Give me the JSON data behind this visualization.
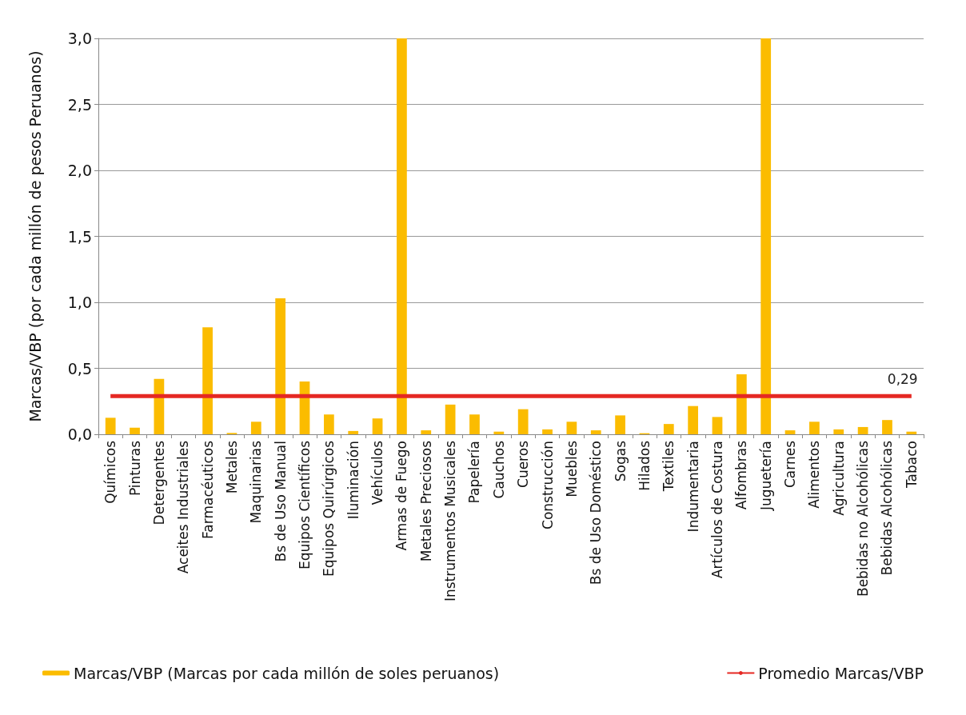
{
  "chart_data": {
    "type": "bar",
    "ylabel": "Marcas/VBP (por cada millón de pesos Peruanos)",
    "categories": [
      "Químicos",
      "Pinturas",
      "Detergentes",
      "Aceites Industriales",
      "Farmacéuticos",
      "Metales",
      "Maquinarias",
      "Bs de Uso Manual",
      "Equipos Científicos",
      "Equipos Quirúrgicos",
      "Iluminación",
      "Vehículos",
      "Armas de Fuego",
      "Metales Preciosos",
      "Instrumentos Musicales",
      "Papelería",
      "Cauchos",
      "Cueros",
      "Construcción",
      "Muebles",
      "Bs de Uso Doméstico",
      "Sogas",
      "Hilados",
      "Textiles",
      "Indumentaria",
      "Artículos de Costura",
      "Alfombras",
      "Juguetería",
      "Carnes",
      "Alimentos",
      "Agricultura",
      "Bebidas no Alcohólicas",
      "Bebidas Alcohólicas",
      "Tabaco"
    ],
    "series": [
      {
        "name": "Marcas/VBP (Marcas por cada millón de soles peruanos)",
        "color": "#fbbc00",
        "values": [
          0.125,
          0.05,
          0.42,
          0,
          0.81,
          0.01,
          0.095,
          1.03,
          0.4,
          0.15,
          0.025,
          0.12,
          3.0,
          0.03,
          0.225,
          0.15,
          0.02,
          0.19,
          0.037,
          0.095,
          0.03,
          0.143,
          0.008,
          0.078,
          0.214,
          0.131,
          0.455,
          3.0,
          0.03,
          0.095,
          0.037,
          0.055,
          0.108,
          0.02
        ]
      },
      {
        "name": "Promedio Marcas/VBP",
        "type": "line",
        "color": "#e52823",
        "values": [
          0.29,
          0.29,
          0.29,
          0.29,
          0.29,
          0.29,
          0.29,
          0.29,
          0.29,
          0.29,
          0.29,
          0.29,
          0.29,
          0.29,
          0.29,
          0.29,
          0.29,
          0.29,
          0.29,
          0.29,
          0.29,
          0.29,
          0.29,
          0.29,
          0.29,
          0.29,
          0.29,
          0.29,
          0.29,
          0.29,
          0.29,
          0.29,
          0.29,
          0.29
        ],
        "value_labels": [
          null,
          null,
          null,
          null,
          null,
          null,
          null,
          null,
          null,
          null,
          null,
          null,
          null,
          null,
          null,
          null,
          null,
          null,
          null,
          null,
          null,
          null,
          null,
          null,
          null,
          null,
          null,
          null,
          null,
          null,
          null,
          null,
          null,
          "0,29"
        ]
      }
    ],
    "ylim": [
      0,
      3
    ],
    "yticks": [
      {
        "value": 0,
        "label": "0,0"
      },
      {
        "value": 0.5,
        "label": "0,5"
      },
      {
        "value": 1,
        "label": "1,0"
      },
      {
        "value": 1.5,
        "label": "1,5"
      },
      {
        "value": 2,
        "label": "2,0"
      },
      {
        "value": 2.5,
        "label": "2,5"
      },
      {
        "value": 3,
        "label": "3,0"
      }
    ],
    "grid": "y",
    "legend": "bottom",
    "marker": "none"
  }
}
